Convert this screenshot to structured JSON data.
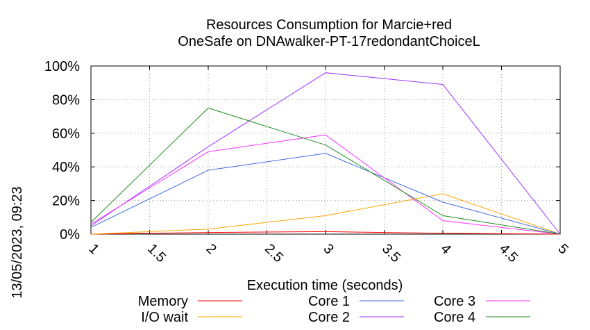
{
  "chart_data": {
    "type": "line",
    "title": [
      "Resources Consumption for Marcie+red",
      "OneSafe on DNAwalker-PT-17redondantChoiceL"
    ],
    "xlabel": "Execution time (seconds)",
    "ylabel": "",
    "xlim": [
      1,
      5
    ],
    "ylim": [
      0,
      100
    ],
    "x_ticks": [
      "1",
      "1.5",
      "2",
      "2.5",
      "3",
      "3.5",
      "4",
      "4.5",
      "5"
    ],
    "y_ticks": [
      "0%",
      "20%",
      "40%",
      "60%",
      "80%",
      "100%"
    ],
    "grid": true,
    "legend_position": "bottom",
    "timestamp": "13/05/2023, 09:23",
    "x": [
      1,
      2,
      3,
      4,
      5
    ],
    "series": [
      {
        "name": "Memory",
        "color": "#ff0000",
        "values": [
          0,
          1,
          1.5,
          0.5,
          0
        ]
      },
      {
        "name": "I/O wait",
        "color": "#ffa500",
        "values": [
          0,
          3,
          11,
          24,
          0
        ]
      },
      {
        "name": "Core 1",
        "color": "#4169e1",
        "values": [
          4,
          38,
          48,
          19,
          0
        ]
      },
      {
        "name": "Core 2",
        "color": "#9933ff",
        "values": [
          5,
          52,
          96,
          89,
          0
        ]
      },
      {
        "name": "Core 3",
        "color": "#ff33ff",
        "values": [
          6,
          49,
          59,
          8,
          0
        ]
      },
      {
        "name": "Core 4",
        "color": "#228b22",
        "values": [
          7,
          75,
          53,
          11,
          0
        ]
      }
    ]
  }
}
